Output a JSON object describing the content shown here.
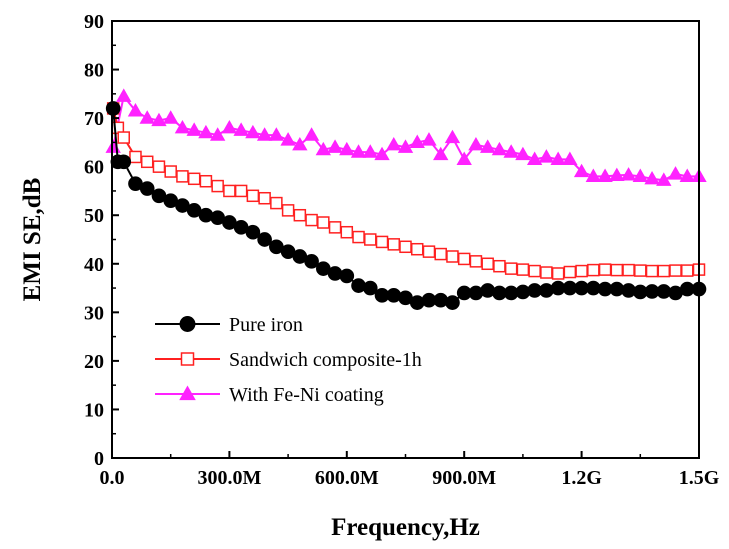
{
  "chart_data": {
    "type": "line",
    "title": "",
    "xlabel": "Frequency,Hz",
    "ylabel": "EMI SE,dB",
    "xlim": [
      0,
      1500
    ],
    "ylim": [
      0,
      90
    ],
    "x_unit": "MHz",
    "x_ticks": [
      {
        "value": 0,
        "label": "0.0"
      },
      {
        "value": 300,
        "label": "300.0M"
      },
      {
        "value": 600,
        "label": "600.0M"
      },
      {
        "value": 900,
        "label": "900.0M"
      },
      {
        "value": 1200,
        "label": "1.2G"
      },
      {
        "value": 1500,
        "label": "1.5G"
      }
    ],
    "y_ticks": [
      0,
      10,
      20,
      30,
      40,
      50,
      60,
      70,
      80,
      90
    ],
    "grid": false,
    "legend_position": "bottom-left",
    "series": [
      {
        "name": "Pure iron",
        "color": "#000000",
        "marker": "filled-circle",
        "points": [
          [
            3,
            72
          ],
          [
            15,
            61
          ],
          [
            30,
            61
          ],
          [
            60,
            56.5
          ],
          [
            90,
            55.5
          ],
          [
            120,
            54
          ],
          [
            150,
            53
          ],
          [
            180,
            52
          ],
          [
            210,
            51
          ],
          [
            240,
            50
          ],
          [
            270,
            49.5
          ],
          [
            300,
            48.5
          ],
          [
            330,
            47.5
          ],
          [
            360,
            46.5
          ],
          [
            390,
            45
          ],
          [
            420,
            43.5
          ],
          [
            450,
            42.5
          ],
          [
            480,
            41.5
          ],
          [
            510,
            40.5
          ],
          [
            540,
            39
          ],
          [
            570,
            38
          ],
          [
            600,
            37.5
          ],
          [
            630,
            35.5
          ],
          [
            660,
            35
          ],
          [
            690,
            33.5
          ],
          [
            720,
            33.5
          ],
          [
            750,
            33
          ],
          [
            780,
            32
          ],
          [
            810,
            32.5
          ],
          [
            840,
            32.5
          ],
          [
            870,
            32
          ],
          [
            900,
            34
          ],
          [
            930,
            34
          ],
          [
            960,
            34.5
          ],
          [
            990,
            34
          ],
          [
            1020,
            34
          ],
          [
            1050,
            34.2
          ],
          [
            1080,
            34.5
          ],
          [
            1110,
            34.5
          ],
          [
            1140,
            35
          ],
          [
            1170,
            35
          ],
          [
            1200,
            35
          ],
          [
            1230,
            35
          ],
          [
            1260,
            34.8
          ],
          [
            1290,
            34.8
          ],
          [
            1320,
            34.5
          ],
          [
            1350,
            34.2
          ],
          [
            1380,
            34.3
          ],
          [
            1410,
            34.3
          ],
          [
            1440,
            34
          ],
          [
            1470,
            34.8
          ],
          [
            1500,
            34.8
          ]
        ]
      },
      {
        "name": "Sandwich composite-1h",
        "color": "#ff2020",
        "marker": "open-square",
        "points": [
          [
            3,
            72
          ],
          [
            15,
            68
          ],
          [
            30,
            66
          ],
          [
            60,
            62
          ],
          [
            90,
            61
          ],
          [
            120,
            60
          ],
          [
            150,
            59
          ],
          [
            180,
            58
          ],
          [
            210,
            57.5
          ],
          [
            240,
            57
          ],
          [
            270,
            56
          ],
          [
            300,
            55
          ],
          [
            330,
            55
          ],
          [
            360,
            54
          ],
          [
            390,
            53.5
          ],
          [
            420,
            52.5
          ],
          [
            450,
            51
          ],
          [
            480,
            50
          ],
          [
            510,
            49
          ],
          [
            540,
            48.5
          ],
          [
            570,
            47.5
          ],
          [
            600,
            46.5
          ],
          [
            630,
            45.5
          ],
          [
            660,
            45
          ],
          [
            690,
            44.5
          ],
          [
            720,
            44
          ],
          [
            750,
            43.5
          ],
          [
            780,
            43
          ],
          [
            810,
            42.5
          ],
          [
            840,
            42
          ],
          [
            870,
            41.5
          ],
          [
            900,
            41
          ],
          [
            930,
            40.5
          ],
          [
            960,
            40
          ],
          [
            990,
            39.5
          ],
          [
            1020,
            39
          ],
          [
            1050,
            38.8
          ],
          [
            1080,
            38.5
          ],
          [
            1110,
            38.2
          ],
          [
            1140,
            38
          ],
          [
            1170,
            38.3
          ],
          [
            1200,
            38.5
          ],
          [
            1230,
            38.7
          ],
          [
            1260,
            38.8
          ],
          [
            1290,
            38.7
          ],
          [
            1320,
            38.7
          ],
          [
            1350,
            38.6
          ],
          [
            1380,
            38.5
          ],
          [
            1410,
            38.5
          ],
          [
            1440,
            38.6
          ],
          [
            1470,
            38.6
          ],
          [
            1500,
            38.8
          ]
        ]
      },
      {
        "name": "With Fe-Ni coating",
        "color": "#ff22ff",
        "marker": "filled-triangle",
        "points": [
          [
            3,
            64
          ],
          [
            30,
            74.5
          ],
          [
            60,
            71.5
          ],
          [
            90,
            70
          ],
          [
            120,
            69.5
          ],
          [
            150,
            70
          ],
          [
            180,
            68
          ],
          [
            210,
            67.5
          ],
          [
            240,
            67
          ],
          [
            270,
            66.5
          ],
          [
            300,
            68
          ],
          [
            330,
            67.5
          ],
          [
            360,
            67
          ],
          [
            390,
            66.5
          ],
          [
            420,
            66.5
          ],
          [
            450,
            65.5
          ],
          [
            480,
            64.5
          ],
          [
            510,
            66.5
          ],
          [
            540,
            63.5
          ],
          [
            570,
            64
          ],
          [
            600,
            63.5
          ],
          [
            630,
            63
          ],
          [
            660,
            63
          ],
          [
            690,
            62.5
          ],
          [
            720,
            64.5
          ],
          [
            750,
            64
          ],
          [
            780,
            65
          ],
          [
            810,
            65.5
          ],
          [
            840,
            62.5
          ],
          [
            870,
            66
          ],
          [
            900,
            61.5
          ],
          [
            930,
            64.5
          ],
          [
            960,
            64
          ],
          [
            990,
            63.5
          ],
          [
            1020,
            63
          ],
          [
            1050,
            62.5
          ],
          [
            1080,
            61.5
          ],
          [
            1110,
            62
          ],
          [
            1140,
            61.5
          ],
          [
            1170,
            61.5
          ],
          [
            1200,
            59
          ],
          [
            1230,
            58
          ],
          [
            1260,
            58
          ],
          [
            1290,
            58.2
          ],
          [
            1320,
            58.3
          ],
          [
            1350,
            58
          ],
          [
            1380,
            57.5
          ],
          [
            1410,
            57.2
          ],
          [
            1440,
            58.5
          ],
          [
            1470,
            58
          ],
          [
            1500,
            58
          ]
        ]
      }
    ]
  }
}
